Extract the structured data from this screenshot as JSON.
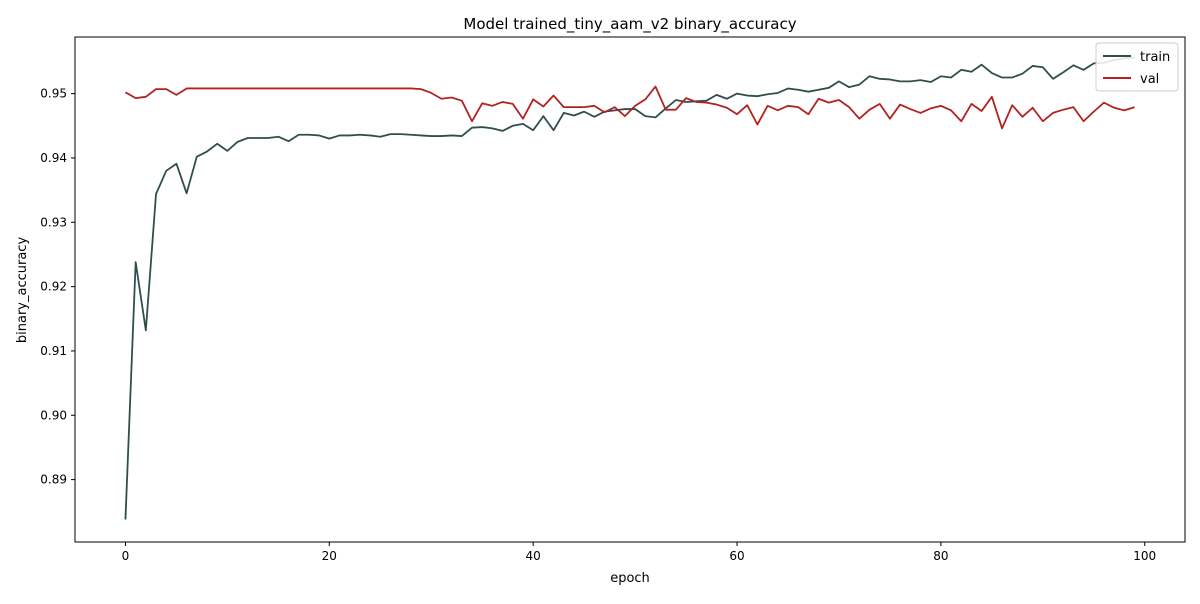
{
  "chart_data": {
    "type": "line",
    "title": "Model trained_tiny_aam_v2 binary_accuracy",
    "xlabel": "epoch",
    "ylabel": "binary_accuracy",
    "xlim": [
      -4.95,
      103.95
    ],
    "ylim": [
      0.8803,
      0.9588
    ],
    "xticks": [
      0,
      20,
      40,
      60,
      80,
      100
    ],
    "yticks": [
      0.89,
      0.9,
      0.91,
      0.92,
      0.93,
      0.94,
      0.95
    ],
    "ytick_labels": [
      "0.89",
      "0.90",
      "0.91",
      "0.92",
      "0.93",
      "0.94",
      "0.95"
    ],
    "grid": false,
    "legend_position": "top-right",
    "x": [
      0,
      1,
      2,
      3,
      4,
      5,
      6,
      7,
      8,
      9,
      10,
      11,
      12,
      13,
      14,
      15,
      16,
      17,
      18,
      19,
      20,
      21,
      22,
      23,
      24,
      25,
      26,
      27,
      28,
      29,
      30,
      31,
      32,
      33,
      34,
      35,
      36,
      37,
      38,
      39,
      40,
      41,
      42,
      43,
      44,
      45,
      46,
      47,
      48,
      49,
      50,
      51,
      52,
      53,
      54,
      55,
      56,
      57,
      58,
      59,
      60,
      61,
      62,
      63,
      64,
      65,
      66,
      67,
      68,
      69,
      70,
      71,
      72,
      73,
      74,
      75,
      76,
      77,
      78,
      79,
      80,
      81,
      82,
      83,
      84,
      85,
      86,
      87,
      88,
      89,
      90,
      91,
      92,
      93,
      94,
      95,
      96,
      97,
      98,
      99
    ],
    "series": [
      {
        "name": "train",
        "color": "#2f4f4f",
        "values": [
          0.8838,
          0.9238,
          0.9132,
          0.9344,
          0.938,
          0.9391,
          0.9345,
          0.9402,
          0.941,
          0.9422,
          0.9411,
          0.9425,
          0.9431,
          0.9431,
          0.9431,
          0.9433,
          0.9426,
          0.9436,
          0.9436,
          0.9435,
          0.943,
          0.9435,
          0.9435,
          0.9436,
          0.9435,
          0.9433,
          0.9437,
          0.9437,
          0.9436,
          0.9435,
          0.9434,
          0.9434,
          0.9435,
          0.9434,
          0.9447,
          0.9448,
          0.9446,
          0.9442,
          0.945,
          0.9453,
          0.9443,
          0.9465,
          0.9443,
          0.947,
          0.9466,
          0.9472,
          0.9464,
          0.9472,
          0.9474,
          0.9476,
          0.9476,
          0.9465,
          0.9463,
          0.9477,
          0.949,
          0.9487,
          0.9488,
          0.9489,
          0.9498,
          0.9492,
          0.95,
          0.9497,
          0.9496,
          0.9499,
          0.9501,
          0.9508,
          0.9506,
          0.9503,
          0.9506,
          0.9509,
          0.9519,
          0.951,
          0.9514,
          0.9527,
          0.9523,
          0.9522,
          0.9519,
          0.9519,
          0.9521,
          0.9518,
          0.9527,
          0.9525,
          0.9537,
          0.9534,
          0.9545,
          0.9532,
          0.9525,
          0.9525,
          0.9531,
          0.9543,
          0.9541,
          0.9523,
          0.9533,
          0.9544,
          0.9537,
          0.9547,
          0.9548,
          0.9552,
          0.9555,
          0.9556
        ]
      },
      {
        "name": "val",
        "color": "#b22222",
        "values": [
          0.9502,
          0.9493,
          0.9495,
          0.9507,
          0.9507,
          0.9498,
          0.9508,
          0.9508,
          0.9508,
          0.9508,
          0.9508,
          0.9508,
          0.9508,
          0.9508,
          0.9508,
          0.9508,
          0.9508,
          0.9508,
          0.9508,
          0.9508,
          0.9508,
          0.9508,
          0.9508,
          0.9508,
          0.9508,
          0.9508,
          0.9508,
          0.9508,
          0.9508,
          0.9507,
          0.9501,
          0.9492,
          0.9494,
          0.9489,
          0.9457,
          0.9485,
          0.9481,
          0.9487,
          0.9484,
          0.9461,
          0.9491,
          0.948,
          0.9497,
          0.9479,
          0.9479,
          0.9479,
          0.9481,
          0.9471,
          0.9479,
          0.9465,
          0.9481,
          0.9491,
          0.9511,
          0.9475,
          0.9475,
          0.9493,
          0.9487,
          0.9486,
          0.9483,
          0.9478,
          0.9468,
          0.9482,
          0.9452,
          0.9481,
          0.9474,
          0.9481,
          0.9479,
          0.9468,
          0.9492,
          0.9486,
          0.949,
          0.9479,
          0.9461,
          0.9475,
          0.9484,
          0.9461,
          0.9483,
          0.9476,
          0.947,
          0.9477,
          0.9481,
          0.9474,
          0.9457,
          0.9484,
          0.9473,
          0.9495,
          0.9446,
          0.9482,
          0.9464,
          0.9478,
          0.9457,
          0.947,
          0.9475,
          0.9479,
          0.9457,
          0.9472,
          0.9486,
          0.9478,
          0.9474,
          0.9479
        ]
      }
    ]
  }
}
